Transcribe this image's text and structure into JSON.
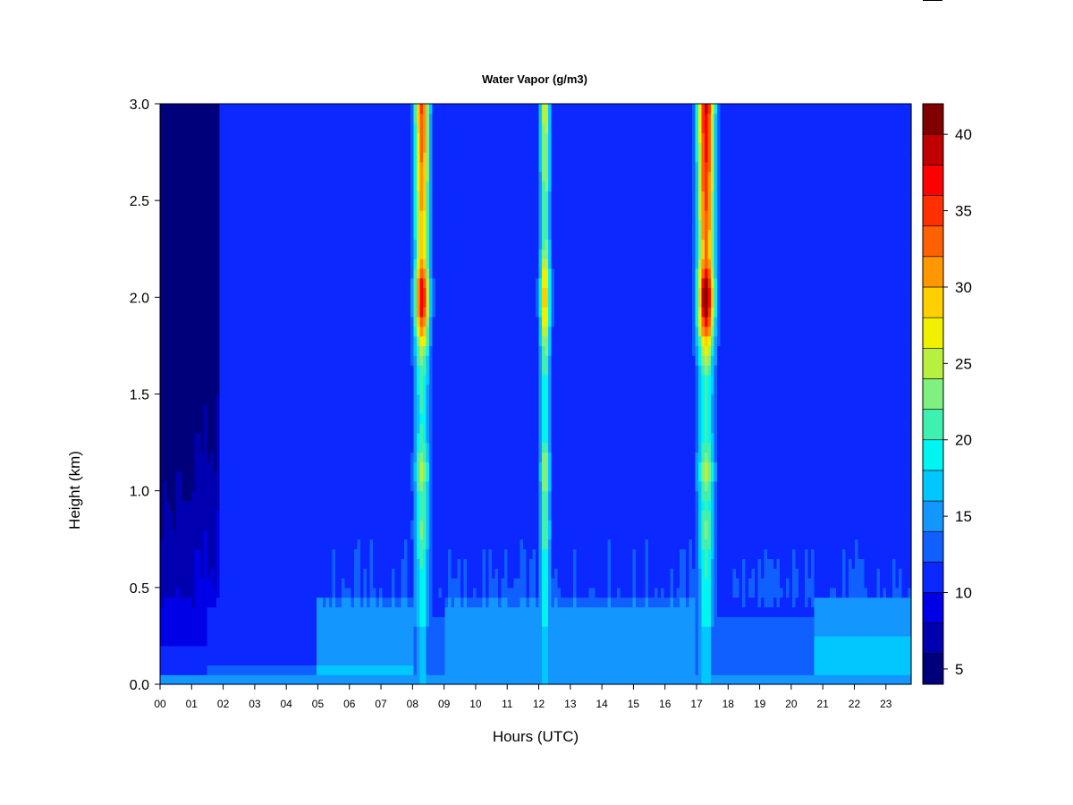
{
  "chart_data": {
    "type": "heatmap",
    "title": "Water Vapor (g/m3)",
    "xlabel": "Hours (UTC)",
    "ylabel": "Height (km)",
    "xlim": [
      0,
      23.8
    ],
    "ylim": [
      0,
      3.0
    ],
    "x_ticks": [
      "00",
      "01",
      "02",
      "03",
      "04",
      "05",
      "06",
      "07",
      "08",
      "09",
      "10",
      "11",
      "12",
      "13",
      "14",
      "15",
      "16",
      "17",
      "18",
      "19",
      "20",
      "21",
      "22",
      "23"
    ],
    "y_ticks": [
      "0.0",
      "0.5",
      "1.0",
      "1.5",
      "2.0",
      "2.5",
      "3.0"
    ],
    "colorbar": {
      "range": [
        4,
        42
      ],
      "ticks": [
        "5",
        "10",
        "15",
        "20",
        "25",
        "30",
        "35",
        "40"
      ],
      "levels": [
        {
          "from": 4,
          "to": 6,
          "color": "#00007a"
        },
        {
          "from": 6,
          "to": 8,
          "color": "#0000b0"
        },
        {
          "from": 8,
          "to": 10,
          "color": "#0000e6"
        },
        {
          "from": 10,
          "to": 12,
          "color": "#0a28ff"
        },
        {
          "from": 12,
          "to": 14,
          "color": "#1060ff"
        },
        {
          "from": 14,
          "to": 16,
          "color": "#1496ff"
        },
        {
          "from": 16,
          "to": 18,
          "color": "#00c8ff"
        },
        {
          "from": 18,
          "to": 20,
          "color": "#00f4f0"
        },
        {
          "from": 20,
          "to": 22,
          "color": "#40f0b0"
        },
        {
          "from": 22,
          "to": 24,
          "color": "#80f080"
        },
        {
          "from": 24,
          "to": 26,
          "color": "#b8f040"
        },
        {
          "from": 26,
          "to": 28,
          "color": "#f0f000"
        },
        {
          "from": 28,
          "to": 30,
          "color": "#ffd000"
        },
        {
          "from": 30,
          "to": 32,
          "color": "#ff9800"
        },
        {
          "from": 32,
          "to": 34,
          "color": "#ff6000"
        },
        {
          "from": 34,
          "to": 36,
          "color": "#ff3000"
        },
        {
          "from": 36,
          "to": 38,
          "color": "#ff0000"
        },
        {
          "from": 38,
          "to": 40,
          "color": "#c00000"
        },
        {
          "from": 40,
          "to": 42,
          "color": "#800000"
        }
      ]
    },
    "features": [
      {
        "kind": "plume",
        "x_center": 8.3,
        "x_width": 0.35,
        "peak": 38,
        "peak_height_km": 2.0
      },
      {
        "kind": "plume",
        "x_center": 12.2,
        "x_width": 0.25,
        "peak": 30,
        "peak_height_km": 2.0
      },
      {
        "kind": "plume",
        "x_center": 17.3,
        "x_width": 0.4,
        "peak": 42,
        "peak_height_km": 2.0
      }
    ]
  }
}
